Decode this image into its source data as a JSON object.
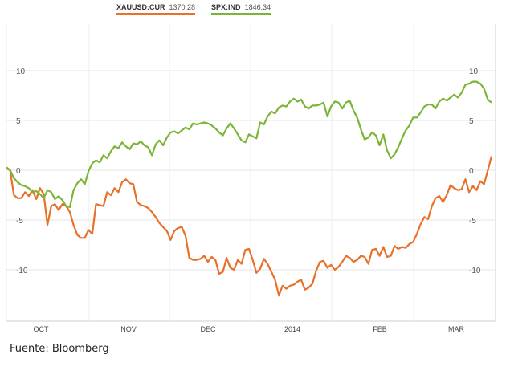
{
  "legend": {
    "items": [
      {
        "name": "XAUUSD:CUR",
        "value": "1370.28",
        "color": "#e8702a"
      },
      {
        "name": "SPX:IND",
        "value": "1846.34",
        "color": "#7ab535"
      }
    ]
  },
  "source": "Fuente: Bloomberg",
  "chart_data": {
    "type": "line",
    "title": "",
    "xlabel": "",
    "ylabel": "",
    "ylim": [
      -15,
      15
    ],
    "yticks": [
      10,
      5,
      0,
      -5,
      -10
    ],
    "yaxis_sides": [
      "left",
      "right"
    ],
    "x_tick_labels": [
      "OCT",
      "NOV",
      "DEC",
      "2014",
      "FEB",
      "MAR"
    ],
    "grid": true,
    "legend_position": "top-left",
    "x_count": 120,
    "series": [
      {
        "name": "XAUUSD:CUR",
        "color": "#e8702a",
        "values": [
          0.2,
          0,
          -2.5,
          -2.8,
          -2.8,
          -2.2,
          -2.6,
          -2.0,
          -2.9,
          -1.8,
          -2.4,
          -5.5,
          -3.6,
          -3.4,
          -4.0,
          -3.4,
          -3.6,
          -4.2,
          -5.5,
          -6.5,
          -6.8,
          -6.8,
          -6.0,
          -6.4,
          -3.4,
          -3.5,
          -3.6,
          -2.2,
          -2.5,
          -1.8,
          -2.2,
          -1.2,
          -0.9,
          -1.3,
          -1.4,
          -3.2,
          -3.5,
          -3.6,
          -3.8,
          -4.2,
          -4.7,
          -5.3,
          -5.7,
          -6.1,
          -7.0,
          -6.1,
          -5.8,
          -5.7,
          -6.6,
          -8.8,
          -9.0,
          -9.0,
          -8.9,
          -8.6,
          -9.2,
          -8.7,
          -9.0,
          -10.4,
          -10.2,
          -8.8,
          -9.8,
          -10.0,
          -9.0,
          -9.4,
          -8.0,
          -7.9,
          -9.0,
          -10.3,
          -9.9,
          -8.9,
          -9.4,
          -10.2,
          -11.0,
          -12.6,
          -11.6,
          -11.9,
          -11.6,
          -11.5,
          -11.2,
          -11.0,
          -12.0,
          -11.8,
          -11.4,
          -10.1,
          -9.2,
          -9.1,
          -9.8,
          -9.5,
          -10.0,
          -9.7,
          -9.2,
          -8.6,
          -8.8,
          -9.2,
          -9.0,
          -8.6,
          -8.7,
          -9.4,
          -8.0,
          -7.9,
          -8.6,
          -7.7,
          -8.7,
          -8.6,
          -7.6,
          -7.9,
          -7.7,
          -7.8,
          -7.4,
          -7.2,
          -6.4,
          -5.4,
          -4.7,
          -4.9,
          -3.6,
          -2.8,
          -2.6,
          -3.2,
          -2.5,
          -1.5
        ],
        "tail_values": [
          -1.8,
          -2.0,
          -1.9,
          -0.9,
          -2.2,
          -1.6,
          -2.0,
          -1.1,
          -1.4,
          0.0,
          1.4
        ]
      },
      {
        "name": "SPX:IND",
        "color": "#7ab535",
        "values": [
          0.3,
          0,
          -0.8,
          -1.2,
          -1.5,
          -1.6,
          -1.8,
          -2.2,
          -2.1,
          -2.4,
          -2.8,
          -2.0,
          -2.2,
          -2.9,
          -2.6,
          -3.0,
          -3.6,
          -3.7,
          -2.0,
          -1.3,
          -0.9,
          -1.4,
          -0.1,
          0.7,
          1.0,
          0.8,
          1.5,
          1.2,
          1.9,
          2.4,
          2.2,
          2.8,
          2.4,
          2.1,
          2.7,
          2.6,
          2.9,
          2.5,
          2.3,
          1.5,
          2.6,
          3.0,
          2.5,
          3.3,
          3.8,
          3.9,
          3.7,
          4.0,
          4.3,
          4.1,
          4.7,
          4.6,
          4.7,
          4.8,
          4.7,
          4.5,
          4.2,
          3.8,
          3.5,
          4.2,
          4.7,
          4.2,
          3.6,
          3.0,
          2.8,
          3.6,
          3.4,
          3.2,
          4.8,
          4.6,
          5.4,
          5.9,
          5.7,
          6.3,
          6.5,
          6.4,
          6.9,
          7.2,
          6.9,
          7.1,
          6.4,
          6.2,
          6.5,
          6.5,
          6.6,
          6.8,
          5.4,
          6.4,
          6.9,
          6.8,
          6.2,
          6.8,
          7.0,
          6.0,
          5.3,
          4.1,
          3.1,
          3.3,
          3.8,
          3.5,
          2.5,
          3.6,
          2.0,
          1.2,
          1.6,
          2.3,
          3.2,
          4.0,
          4.5,
          5.3,
          5.3,
          5.8,
          6.4,
          6.6,
          6.6,
          6.2,
          6.9,
          7.2,
          7.0,
          7.3
        ],
        "tail_values": [
          7.6,
          7.3,
          7.8,
          8.6,
          8.7,
          8.9,
          8.9,
          8.7,
          8.2,
          7.1,
          6.8
        ]
      }
    ]
  }
}
